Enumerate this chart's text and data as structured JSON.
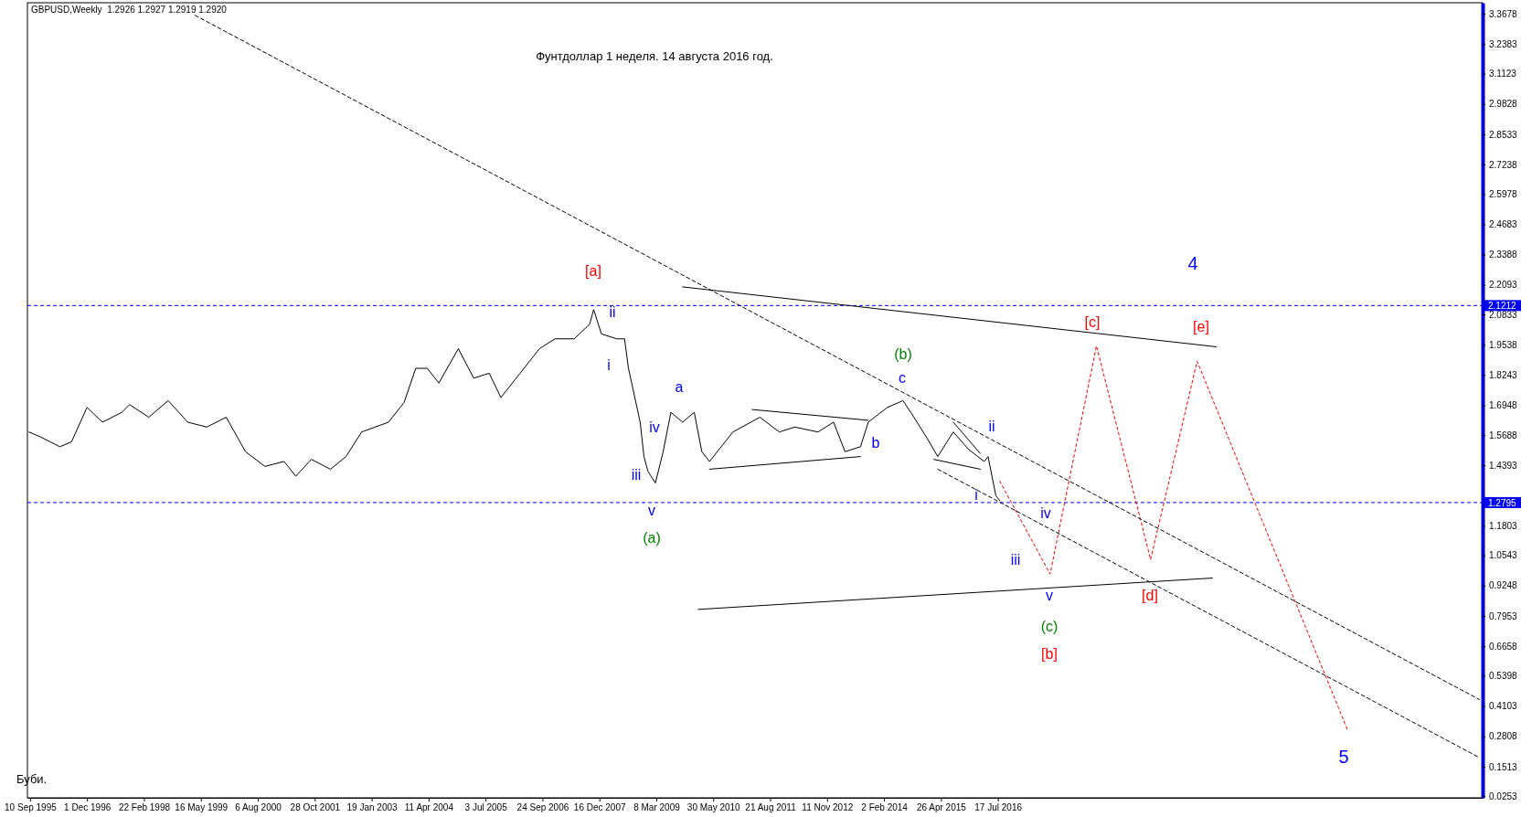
{
  "chart_data": {
    "type": "line",
    "title": "Фунтдоллар 1 неделя. 14 августа 2016 год.",
    "subtitle": "GBPUSD,Weekly  1.2926 1.2927 1.2919 1.2920",
    "xlim": [
      "1995-08-20",
      "2026-12-27"
    ],
    "xticks": [
      {
        "value": "1995-09-10",
        "label": "10 Sep 1995"
      },
      {
        "value": "1996-12-01",
        "label": "1 Dec 1996"
      },
      {
        "value": "1998-02-22",
        "label": "22 Feb 1998"
      },
      {
        "value": "1999-05-16",
        "label": "16 May 1999"
      },
      {
        "value": "2000-08-06",
        "label": "6 Aug 2000"
      },
      {
        "value": "2001-10-28",
        "label": "28 Oct 2001"
      },
      {
        "value": "2003-01-19",
        "label": "19 Jan 2003"
      },
      {
        "value": "2004-04-11",
        "label": "11 Apr 2004"
      },
      {
        "value": "2005-07-03",
        "label": "3 Jul 2005"
      },
      {
        "value": "2006-09-24",
        "label": "24 Sep 2006"
      },
      {
        "value": "2007-12-16",
        "label": "16 Dec 2007"
      },
      {
        "value": "2009-03-08",
        "label": "8 Mar 2009"
      },
      {
        "value": "2010-05-30",
        "label": "30 May 2010"
      },
      {
        "value": "2011-08-21",
        "label": "21 Aug 2011"
      },
      {
        "value": "2012-11-11",
        "label": "11 Nov 2012"
      },
      {
        "value": "2014-02-02",
        "label": "2 Feb 2014"
      },
      {
        "value": "2015-04-26",
        "label": "26 Apr 2015"
      },
      {
        "value": "2016-07-17",
        "label": "17 Jul 2016"
      }
    ],
    "ylim": [
      0.018,
      3.415
    ],
    "yticks": [
      0.0253,
      0.1513,
      0.2808,
      0.4103,
      0.5398,
      0.6658,
      0.7953,
      0.9248,
      1.0543,
      1.1803,
      1.4393,
      1.5688,
      1.6948,
      1.8243,
      1.9538,
      2.0833,
      2.2093,
      2.3388,
      2.4683,
      2.5978,
      2.7238,
      2.8533,
      2.9828,
      3.1123,
      3.2383,
      3.3678
    ],
    "grid": false,
    "ref_lines": [
      {
        "axis": "y",
        "value": 2.1212,
        "label": "2.1212",
        "color": "#0000ff",
        "line_style": "dashed"
      },
      {
        "axis": "y",
        "value": 1.2795,
        "label": "1.2795",
        "color": "#0000ff",
        "line_style": "dashed"
      }
    ],
    "series": [
      {
        "color": "#000000",
        "line_style": "solid",
        "x": [
          "1995-09",
          "1995-12",
          "1996-05",
          "1996-08",
          "1996-12",
          "1997-04",
          "1997-09",
          "1997-11",
          "1998-04",
          "1998-09",
          "1999-02",
          "1999-07",
          "1999-12",
          "2000-05",
          "2000-10",
          "2001-03",
          "2001-06",
          "2001-10",
          "2002-03",
          "2002-07",
          "2002-11",
          "2003-06",
          "2003-10",
          "2004-01",
          "2004-04",
          "2004-07",
          "2004-12",
          "2005-04",
          "2005-08",
          "2005-11",
          "2006-04",
          "2006-09",
          "2007-01",
          "2007-06",
          "2007-10",
          "2007-11",
          "2008-01",
          "2008-05",
          "2008-07",
          "2008-08",
          "2008-11",
          "2008-12",
          "2009-01",
          "2009-03",
          "2009-05",
          "2009-07",
          "2009-10",
          "2010-01",
          "2010-03",
          "2010-05",
          "2010-11",
          "2011-06",
          "2011-11",
          "2012-03",
          "2012-09",
          "2013-01",
          "2013-04",
          "2013-08",
          "2013-10",
          "2014-03",
          "2014-07",
          "2014-09",
          "2015-01",
          "2015-04",
          "2015-08",
          "2015-12",
          "2016-04",
          "2016-05",
          "2016-07",
          "2016-08"
        ],
        "values": [
          1.581,
          1.56,
          1.518,
          1.539,
          1.686,
          1.623,
          1.665,
          1.698,
          1.644,
          1.715,
          1.623,
          1.602,
          1.644,
          1.497,
          1.434,
          1.455,
          1.392,
          1.464,
          1.422,
          1.476,
          1.581,
          1.623,
          1.707,
          1.853,
          1.853,
          1.79,
          1.937,
          1.811,
          1.832,
          1.728,
          1.832,
          1.937,
          1.979,
          1.979,
          2.042,
          2.104,
          2.0,
          1.979,
          1.979,
          1.853,
          1.623,
          1.476,
          1.413,
          1.363,
          1.497,
          1.665,
          1.623,
          1.665,
          1.497,
          1.455,
          1.581,
          1.644,
          1.581,
          1.602,
          1.581,
          1.623,
          1.497,
          1.518,
          1.623,
          1.686,
          1.715,
          1.665,
          1.56,
          1.476,
          1.581,
          1.506,
          1.455,
          1.476,
          1.309,
          1.288
        ]
      },
      {
        "color": "#ff0000",
        "line_style": "dotted",
        "x": [
          "2016-08",
          "2017-09",
          "2018-09",
          "2019-11",
          "2020-11",
          "2024-02"
        ],
        "values": [
          1.371,
          0.974,
          1.949,
          1.036,
          1.883,
          0.304
        ]
      },
      {
        "color": "#000000",
        "line_style": "solid",
        "x": [
          "2009-10",
          "2021-04"
        ],
        "values": [
          2.201,
          1.945
        ]
      },
      {
        "color": "#000000",
        "line_style": "solid",
        "x": [
          "2010-02",
          "2021-03"
        ],
        "values": [
          0.823,
          0.957
        ]
      },
      {
        "color": "#000000",
        "line_style": "solid",
        "x": [
          "2011-04",
          "2013-10"
        ],
        "values": [
          1.677,
          1.631
        ]
      },
      {
        "color": "#000000",
        "line_style": "solid",
        "x": [
          "2010-05",
          "2013-08"
        ],
        "values": [
          1.422,
          1.476
        ]
      },
      {
        "color": "#000000",
        "line_style": "solid",
        "x": [
          "2015-03",
          "2016-03"
        ],
        "values": [
          1.464,
          1.422
        ]
      },
      {
        "color": "#000000",
        "line_style": "solid",
        "x": [
          "2015-08",
          "2016-03"
        ],
        "values": [
          1.623,
          1.489
        ]
      },
      {
        "color": "#000000",
        "line_style": "dashed",
        "x": [
          "1999-04",
          "2026-12"
        ],
        "values": [
          3.361,
          0.438
        ]
      },
      {
        "color": "#000000",
        "line_style": "dashed",
        "x": [
          "2015-04",
          "2026-12"
        ],
        "values": [
          1.422,
          0.19
        ]
      }
    ],
    "annotations": [
      "[a]",
      "ii",
      "i",
      "iii",
      "iv",
      "v",
      "(a)",
      "a",
      "b",
      "c",
      "(b)",
      "ii",
      "i",
      "iii",
      "iv",
      "v",
      "(c)",
      "[b]",
      "[c]",
      "[d]",
      "[e]",
      "4",
      "5",
      "Буби."
    ]
  }
}
